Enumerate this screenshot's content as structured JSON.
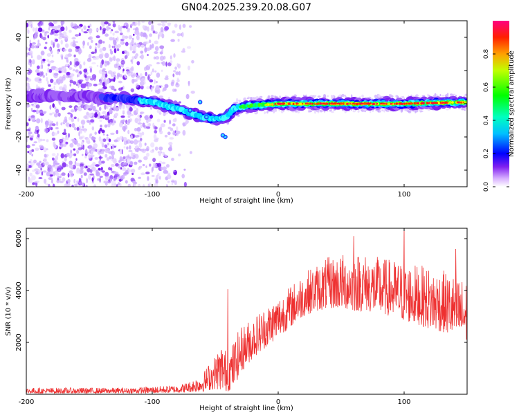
{
  "title": "GN04.2025.239.20.08.G07",
  "chart_data": [
    {
      "type": "heatmap",
      "name": "spectrogram",
      "xlabel": "Height of straight line (km)",
      "ylabel": "Frequency (Hz)",
      "xlim": [
        -200,
        150
      ],
      "ylim": [
        -50,
        50
      ],
      "xticks": [
        -200,
        -100,
        0,
        100
      ],
      "yticks": [
        -40,
        -20,
        0,
        20,
        40
      ],
      "colorbar": {
        "label": "Normalized spectral amplitude",
        "range": [
          0,
          1
        ],
        "ticks": [
          "0.0",
          "0.2",
          "0.4",
          "0.6",
          "0.8"
        ],
        "colors": [
          "#ffffff",
          "#c080ff",
          "#6000e0",
          "#0000ff",
          "#00ffff",
          "#00ff00",
          "#ffff00",
          "#ff8000",
          "#ff0000",
          "#ff0080"
        ]
      },
      "signal_trace": {
        "x": [
          -180,
          -150,
          -120,
          -100,
          -90,
          -80,
          -70,
          -60,
          -50,
          -45,
          -40,
          -35,
          -30,
          -20,
          0,
          50,
          100,
          150
        ],
        "frequency_hz": [
          5,
          4,
          3,
          1,
          -1,
          -3,
          -6,
          -8,
          -9,
          -9,
          -7,
          -3,
          -2,
          -1,
          0,
          0,
          0,
          1
        ]
      }
    },
    {
      "type": "line",
      "name": "snr",
      "xlabel": "Height of straight line (km)",
      "ylabel": "SNR (10 * v/v)",
      "xlim": [
        -200,
        150
      ],
      "ylim": [
        0,
        6400
      ],
      "xticks": [
        -200,
        -100,
        0,
        100
      ],
      "yticks": [
        2000,
        4000,
        6000
      ],
      "line_color": "#ee3030",
      "envelope": {
        "x": [
          -200,
          -150,
          -120,
          -100,
          -80,
          -70,
          -60,
          -55,
          -50,
          -45,
          -40,
          -35,
          -30,
          -20,
          -10,
          0,
          10,
          20,
          30,
          40,
          50,
          60,
          70,
          80,
          90,
          100,
          110,
          120,
          130,
          140,
          150
        ],
        "low": [
          30,
          30,
          40,
          40,
          60,
          80,
          100,
          150,
          200,
          150,
          100,
          300,
          800,
          1400,
          1800,
          2200,
          2600,
          3000,
          3200,
          3300,
          3300,
          3200,
          3200,
          3100,
          3000,
          2800,
          2700,
          2500,
          2400,
          2200,
          2000
        ],
        "high": [
          250,
          250,
          250,
          300,
          350,
          500,
          800,
          1200,
          1500,
          2000,
          1600,
          2100,
          2600,
          3000,
          3400,
          3800,
          4200,
          4700,
          5000,
          5300,
          5400,
          5500,
          5400,
          5300,
          5200,
          5100,
          5000,
          4900,
          4800,
          4600,
          4400
        ]
      },
      "spikes": [
        {
          "x": -40,
          "y": 4050
        },
        {
          "x": 60,
          "y": 6100
        },
        {
          "x": 100,
          "y": 6400
        },
        {
          "x": 141,
          "y": 5600
        }
      ]
    }
  ]
}
